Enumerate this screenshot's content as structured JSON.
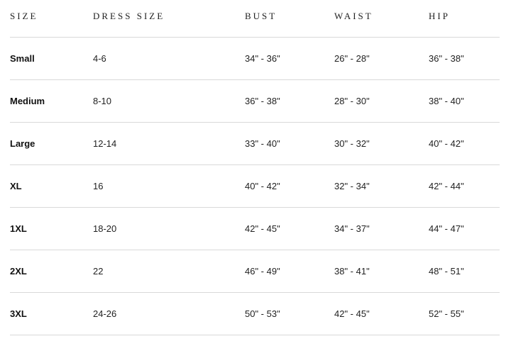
{
  "headers": [
    "SIZE",
    "DRESS SIZE",
    "BUST",
    "WAIST",
    "HIP"
  ],
  "rows": [
    {
      "size": "Small",
      "dress": "4-6",
      "bust": "34\" - 36\"",
      "waist": "26\" - 28\"",
      "hip": "36\" - 38\""
    },
    {
      "size": "Medium",
      "dress": "8-10",
      "bust": "36\" - 38\"",
      "waist": "28\" - 30\"",
      "hip": "38\" - 40\""
    },
    {
      "size": "Large",
      "dress": "12-14",
      "bust": "33\" - 40\"",
      "waist": "30\" - 32\"",
      "hip": "40\" - 42\""
    },
    {
      "size": "XL",
      "dress": "16",
      "bust": "40\" - 42\"",
      "waist": "32\" - 34\"",
      "hip": "42\" - 44\""
    },
    {
      "size": "1XL",
      "dress": "18-20",
      "bust": "42\" - 45\"",
      "waist": "34\" - 37\"",
      "hip": "44\" - 47\""
    },
    {
      "size": "2XL",
      "dress": "22",
      "bust": "46\" - 49\"",
      "waist": "38\" - 41\"",
      "hip": "48\" - 51\""
    },
    {
      "size": "3XL",
      "dress": "24-26",
      "bust": "50\" - 53\"",
      "waist": "42\" - 45\"",
      "hip": "52\" - 55\""
    }
  ]
}
